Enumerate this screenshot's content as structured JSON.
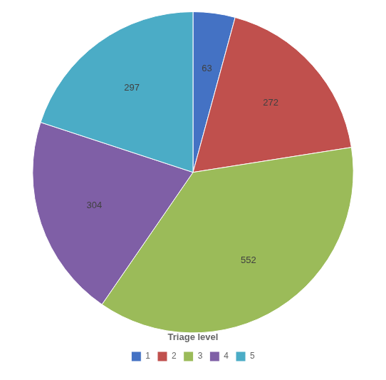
{
  "chart_data": {
    "type": "pie",
    "categories": [
      "1",
      "2",
      "3",
      "4",
      "5"
    ],
    "values": [
      63,
      272,
      552,
      304,
      297
    ],
    "colors": [
      "#4472c4",
      "#c0504d",
      "#9bbb59",
      "#7f5fa6",
      "#4bacc6"
    ],
    "legend": "bottom",
    "legend_title": "Triage level",
    "data_labels": true
  }
}
